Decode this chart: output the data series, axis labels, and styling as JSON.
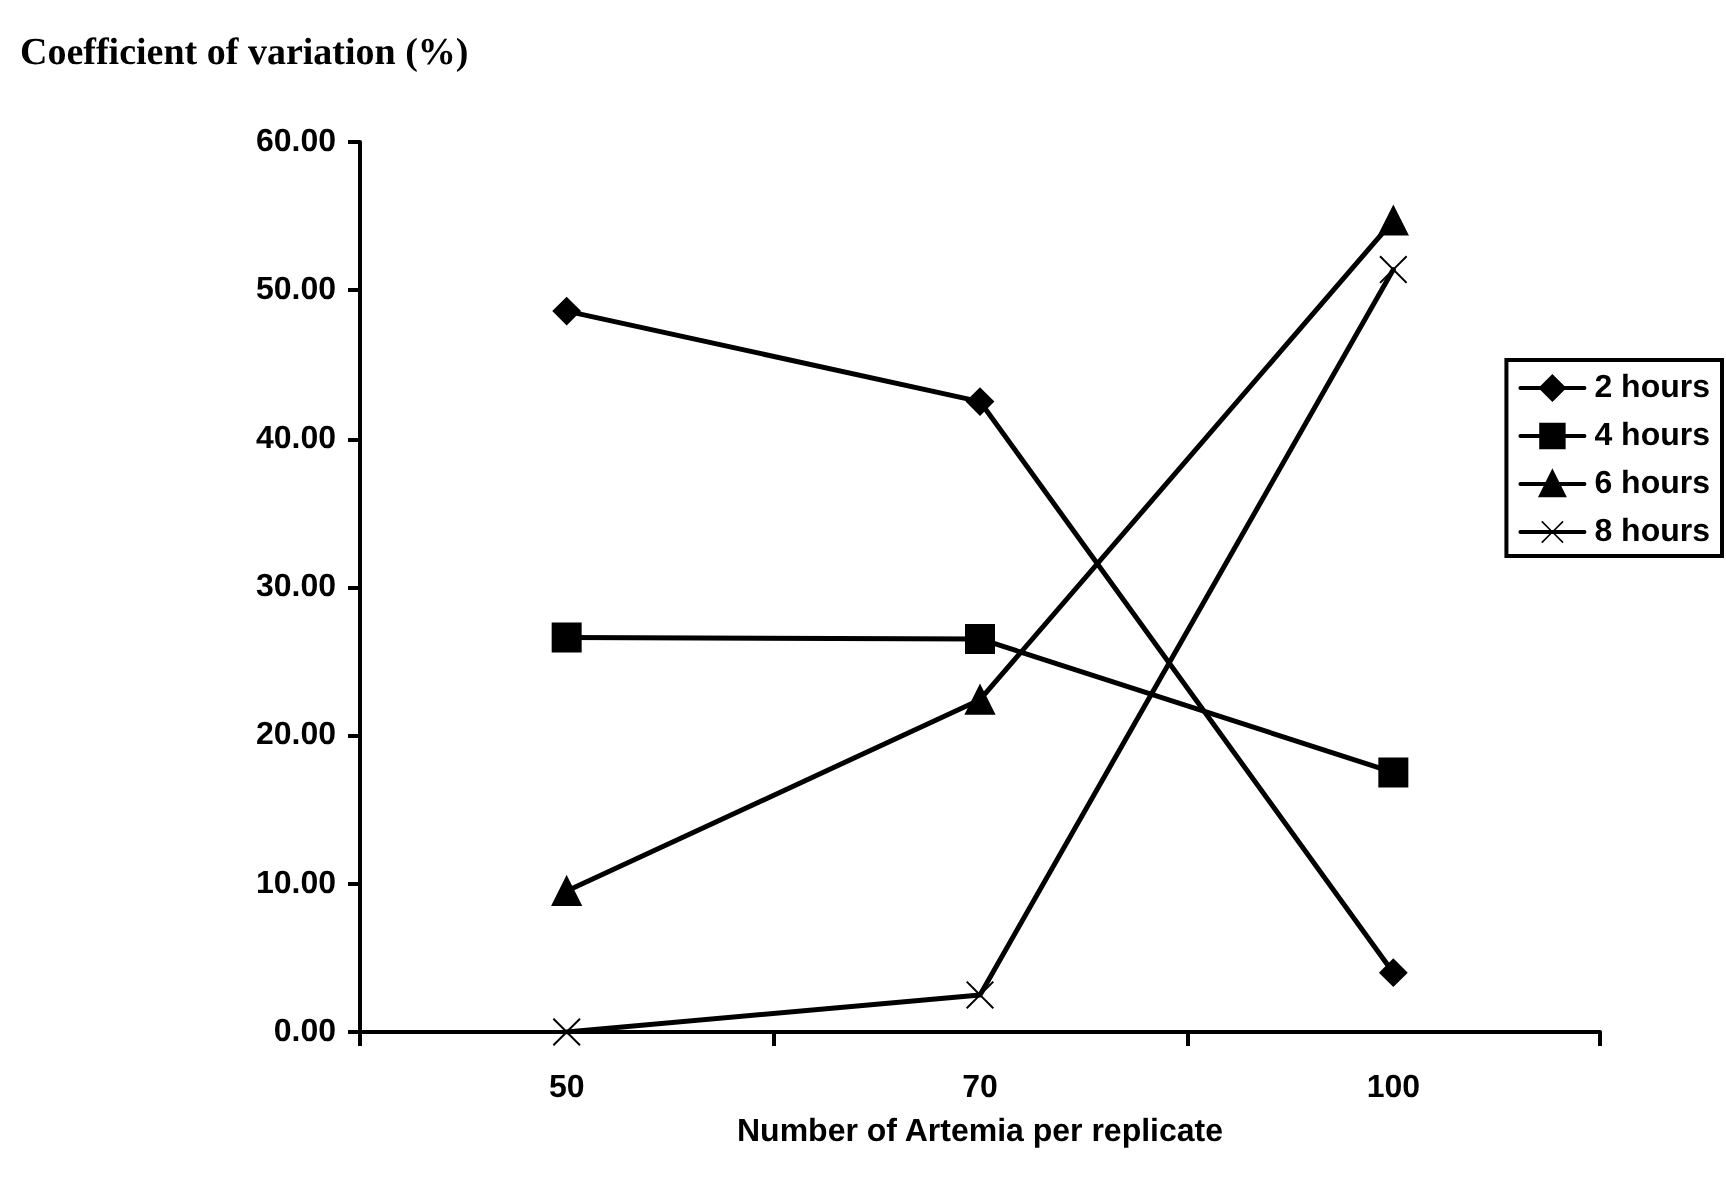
{
  "chart_data": {
    "type": "line",
    "title": "Coefficient of variation (%)",
    "xlabel": "Number of Artemia per replicate",
    "categories": [
      "50",
      "70",
      "100"
    ],
    "series": [
      {
        "name": "2 hours",
        "color": "#000000",
        "marker": "diamond",
        "values": [
          48.6,
          42.5,
          4.0
        ]
      },
      {
        "name": "4 hours",
        "color": "#000000",
        "marker": "square",
        "values": [
          26.6,
          26.5,
          17.5
        ]
      },
      {
        "name": "6 hours",
        "color": "#000000",
        "marker": "triangle",
        "values": [
          9.5,
          22.4,
          54.7
        ]
      },
      {
        "name": "8 hours",
        "color": "#000000",
        "marker": "cross",
        "values": [
          0.0,
          2.5,
          51.4
        ]
      }
    ],
    "ylim": [
      0,
      60
    ],
    "yticks": [
      {
        "value": 0,
        "label": "0.00"
      },
      {
        "value": 10,
        "label": "10.00"
      },
      {
        "value": 20,
        "label": "20.00"
      },
      {
        "value": 30,
        "label": "30.00"
      },
      {
        "value": 40,
        "label": "40.00"
      },
      {
        "value": 50,
        "label": "50.00"
      },
      {
        "value": 60,
        "label": "60.00"
      }
    ],
    "grid": false,
    "legend": "right",
    "line_style": "solid"
  }
}
